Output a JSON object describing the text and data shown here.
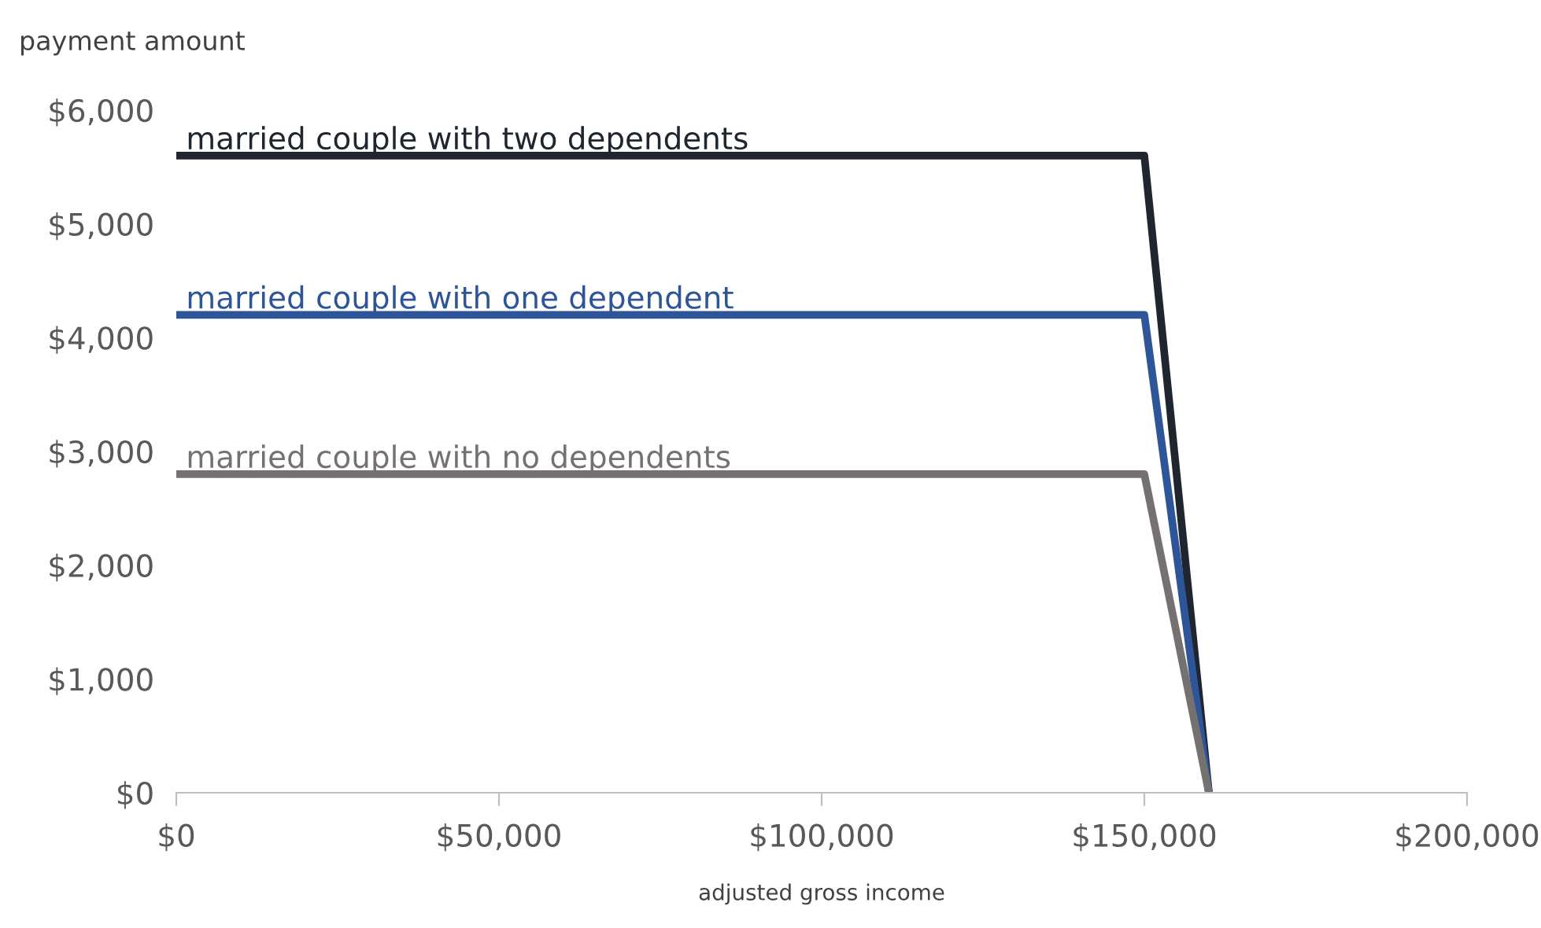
{
  "chart_data": {
    "type": "line",
    "xlabel": "adjusted gross income",
    "ylabel": "payment amount",
    "xlim": [
      0,
      200000
    ],
    "ylim": [
      0,
      6000
    ],
    "xticks": [
      {
        "value": 0,
        "label": "$0"
      },
      {
        "value": 50000,
        "label": "$50,000"
      },
      {
        "value": 100000,
        "label": "$100,000"
      },
      {
        "value": 150000,
        "label": "$150,000"
      },
      {
        "value": 200000,
        "label": "$200,000"
      }
    ],
    "yticks": [
      {
        "value": 0,
        "label": "$0"
      },
      {
        "value": 1000,
        "label": "$1,000"
      },
      {
        "value": 2000,
        "label": "$2,000"
      },
      {
        "value": 3000,
        "label": "$3,000"
      },
      {
        "value": 4000,
        "label": "$4,000"
      },
      {
        "value": 5000,
        "label": "$5,000"
      },
      {
        "value": 6000,
        "label": "$6,000"
      }
    ],
    "grid": false,
    "legend": false,
    "marker": "none",
    "line_style": "solid",
    "series": [
      {
        "name": "married couple with two dependents",
        "color": "#1f2630",
        "x": [
          0,
          150000,
          160000
        ],
        "values": [
          5600,
          5600,
          0
        ]
      },
      {
        "name": "married couple with one dependent",
        "color": "#2e5597",
        "x": [
          0,
          150000,
          160000
        ],
        "values": [
          4200,
          4200,
          0
        ]
      },
      {
        "name": "married couple with no dependents",
        "color": "#767171",
        "x": [
          0,
          150000,
          160000
        ],
        "values": [
          2800,
          2800,
          0
        ]
      }
    ]
  }
}
